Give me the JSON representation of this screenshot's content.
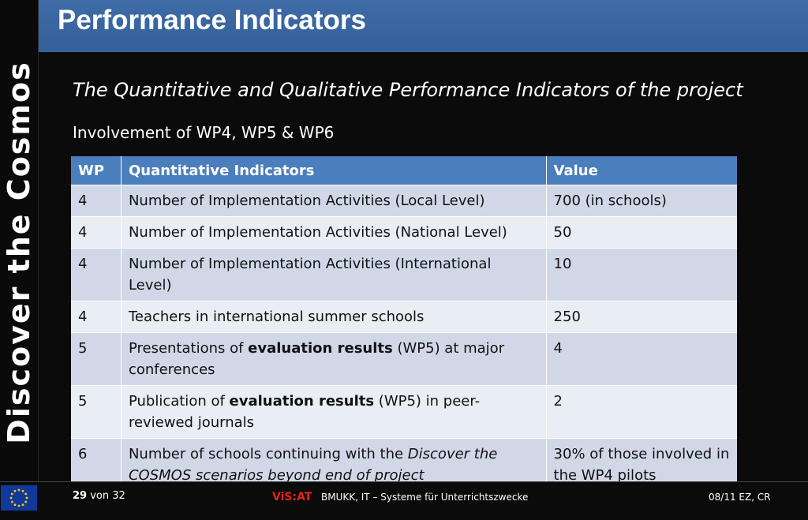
{
  "sidebar": {
    "text": "Discover the Cosmos"
  },
  "header": {
    "title": "Performance Indicators"
  },
  "main": {
    "subtitle": "The Quantitative and Qualitative Performance Indicators of the project",
    "intro": "Involvement of WP4, WP5 & WP6",
    "table": {
      "headers": [
        "WP",
        "Quantitative Indicators",
        "Value"
      ],
      "rows": [
        {
          "wp": "4",
          "indicator": "Number of Implementation Activities (Local Level)",
          "value": "700 (in schools)"
        },
        {
          "wp": "4",
          "indicator": "Number of Implementation Activities (National Level)",
          "value": "50"
        },
        {
          "wp": "4",
          "indicator": "Number of Implementation Activities (International Level)",
          "value": "10"
        },
        {
          "wp": "4",
          "indicator": "Teachers in international summer schools",
          "value": "250"
        },
        {
          "wp": "5",
          "indicator_pre": "Presentations of ",
          "indicator_bold": "evaluation results",
          "indicator_post": " (WP5) at major conferences",
          "value": "4"
        },
        {
          "wp": "5",
          "indicator_pre": "Publication of ",
          "indicator_bold": "evaluation results",
          "indicator_post": " (WP5) in peer-reviewed journals",
          "value": "2"
        },
        {
          "wp": "6",
          "indicator_pre": "Number of schools continuing with the ",
          "indicator_italic": "Discover the COSMOS scenarios beyond end of project",
          "value": "30% of those involved in the WP4 pilots"
        }
      ]
    }
  },
  "footer": {
    "page_current": "29",
    "page_sep": "von 32",
    "brand": "ViS:AT",
    "org": "BMUKK, IT – Systeme für Unterrichtszwecke",
    "date": "08/11 EZ, CR",
    "flag_icon": "eu-flag-icon"
  },
  "colors": {
    "header_blue": "#3f6ca6",
    "table_header": "#4a7ebd",
    "row_odd": "#d0d8e8",
    "row_even": "#e9edf4",
    "brand_red": "#e4231b"
  }
}
